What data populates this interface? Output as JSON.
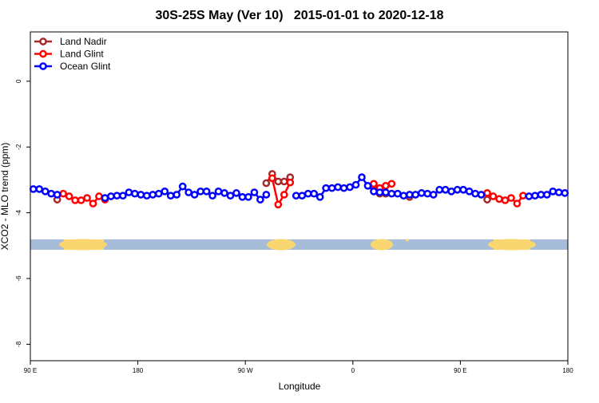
{
  "chart_data": {
    "type": "line",
    "title": "30S-25S May (Ver 10)   2015-01-01 to 2020-12-18",
    "xlabel": "Longitude",
    "ylabel": "XCO2 - MLO trend (ppm)",
    "xlim": [
      90,
      540
    ],
    "ylim": [
      -8.5,
      1.5
    ],
    "xticks": [
      {
        "value": 90,
        "label": "90 E"
      },
      180,
      {
        "value": 270,
        "label": "90 W"
      },
      {
        "value": 360,
        "label": "0"
      },
      {
        "value": 450,
        "label": "90 E"
      },
      {
        "value": 540,
        "label": "180"
      }
    ],
    "yticks": [
      0,
      -2,
      -4,
      -6,
      -8
    ],
    "legend": "top-left",
    "x": [
      92.5,
      97.5,
      102.5,
      107.5,
      112.5,
      117.5,
      122.5,
      127.5,
      132.5,
      137.5,
      142.5,
      147.5,
      152.5,
      157.5,
      162.5,
      167.5,
      172.5,
      177.5,
      182.5,
      187.5,
      192.5,
      197.5,
      202.5,
      207.5,
      212.5,
      217.5,
      222.5,
      227.5,
      232.5,
      237.5,
      242.5,
      247.5,
      252.5,
      257.5,
      262.5,
      267.5,
      272.5,
      277.5,
      282.5,
      287.5,
      292.5,
      297.5,
      302.5,
      307.5,
      312.5,
      317.5,
      322.5,
      327.5,
      332.5,
      337.5,
      342.5,
      347.5,
      352.5,
      357.5,
      362.5,
      367.5,
      372.5,
      377.5,
      382.5,
      387.5,
      392.5,
      397.5,
      402.5,
      407.5,
      412.5,
      417.5,
      422.5,
      427.5,
      432.5,
      437.5,
      442.5,
      447.5,
      452.5,
      457.5,
      462.5,
      467.5,
      472.5,
      477.5,
      482.5,
      487.5,
      492.5,
      497.5,
      502.5,
      507.5,
      512.5,
      517.5,
      522.5,
      527.5,
      532.5,
      537.5
    ],
    "series": [
      {
        "name": "Land Nadir",
        "color": "#a52a2a",
        "values": [
          null,
          null,
          null,
          null,
          -3.6,
          null,
          null,
          null,
          null,
          null,
          null,
          null,
          null,
          null,
          null,
          null,
          null,
          null,
          null,
          null,
          null,
          null,
          null,
          null,
          null,
          null,
          null,
          null,
          null,
          null,
          null,
          null,
          null,
          null,
          null,
          null,
          null,
          null,
          null,
          -3.1,
          -2.82,
          -3.05,
          -3.05,
          -2.92,
          null,
          null,
          null,
          null,
          null,
          null,
          null,
          null,
          null,
          null,
          null,
          null,
          null,
          -3.15,
          -3.42,
          -3.42,
          null,
          null,
          null,
          -3.52,
          null,
          null,
          null,
          null,
          null,
          null,
          null,
          null,
          null,
          null,
          null,
          null,
          -3.6,
          null,
          null,
          null,
          null,
          null,
          null,
          null,
          null,
          null,
          null,
          null,
          null,
          null
        ]
      },
      {
        "name": "Land Glint",
        "color": "#ff0000",
        "values": [
          null,
          null,
          null,
          null,
          null,
          -3.42,
          -3.5,
          -3.62,
          -3.62,
          -3.55,
          -3.72,
          -3.5,
          -3.6,
          null,
          null,
          null,
          null,
          null,
          null,
          null,
          null,
          null,
          null,
          null,
          null,
          null,
          null,
          null,
          null,
          null,
          null,
          null,
          null,
          null,
          null,
          null,
          null,
          null,
          null,
          null,
          -2.95,
          -3.75,
          -3.45,
          -3.08,
          null,
          null,
          null,
          null,
          null,
          null,
          null,
          null,
          null,
          null,
          null,
          null,
          null,
          -3.12,
          -3.25,
          -3.18,
          -3.12,
          null,
          null,
          null,
          null,
          null,
          null,
          null,
          null,
          null,
          null,
          null,
          null,
          null,
          null,
          null,
          -3.4,
          -3.5,
          -3.58,
          -3.62,
          -3.55,
          -3.72,
          -3.48,
          null,
          null,
          null,
          null,
          null,
          null,
          null
        ]
      },
      {
        "name": "Ocean Glint",
        "color": "#0000ff",
        "values": [
          -3.28,
          -3.28,
          -3.35,
          -3.42,
          -3.45,
          null,
          null,
          null,
          null,
          null,
          null,
          null,
          -3.55,
          -3.5,
          -3.48,
          -3.48,
          -3.38,
          -3.42,
          -3.45,
          -3.48,
          -3.45,
          -3.42,
          -3.35,
          -3.48,
          -3.45,
          -3.2,
          -3.38,
          -3.45,
          -3.35,
          -3.35,
          -3.48,
          -3.35,
          -3.4,
          -3.48,
          -3.4,
          -3.52,
          -3.52,
          -3.38,
          -3.6,
          -3.45,
          null,
          null,
          null,
          null,
          -3.48,
          -3.48,
          -3.42,
          -3.42,
          -3.52,
          -3.25,
          -3.25,
          -3.22,
          -3.25,
          -3.22,
          -3.15,
          -2.92,
          -3.18,
          -3.35,
          -3.38,
          -3.38,
          -3.42,
          -3.42,
          -3.48,
          -3.45,
          -3.45,
          -3.4,
          -3.42,
          -3.45,
          -3.3,
          -3.3,
          -3.35,
          -3.3,
          -3.3,
          -3.35,
          -3.42,
          -3.45,
          null,
          null,
          null,
          null,
          null,
          null,
          null,
          -3.5,
          -3.48,
          -3.45,
          -3.45,
          -3.35,
          -3.38,
          -3.4
        ]
      }
    ]
  }
}
